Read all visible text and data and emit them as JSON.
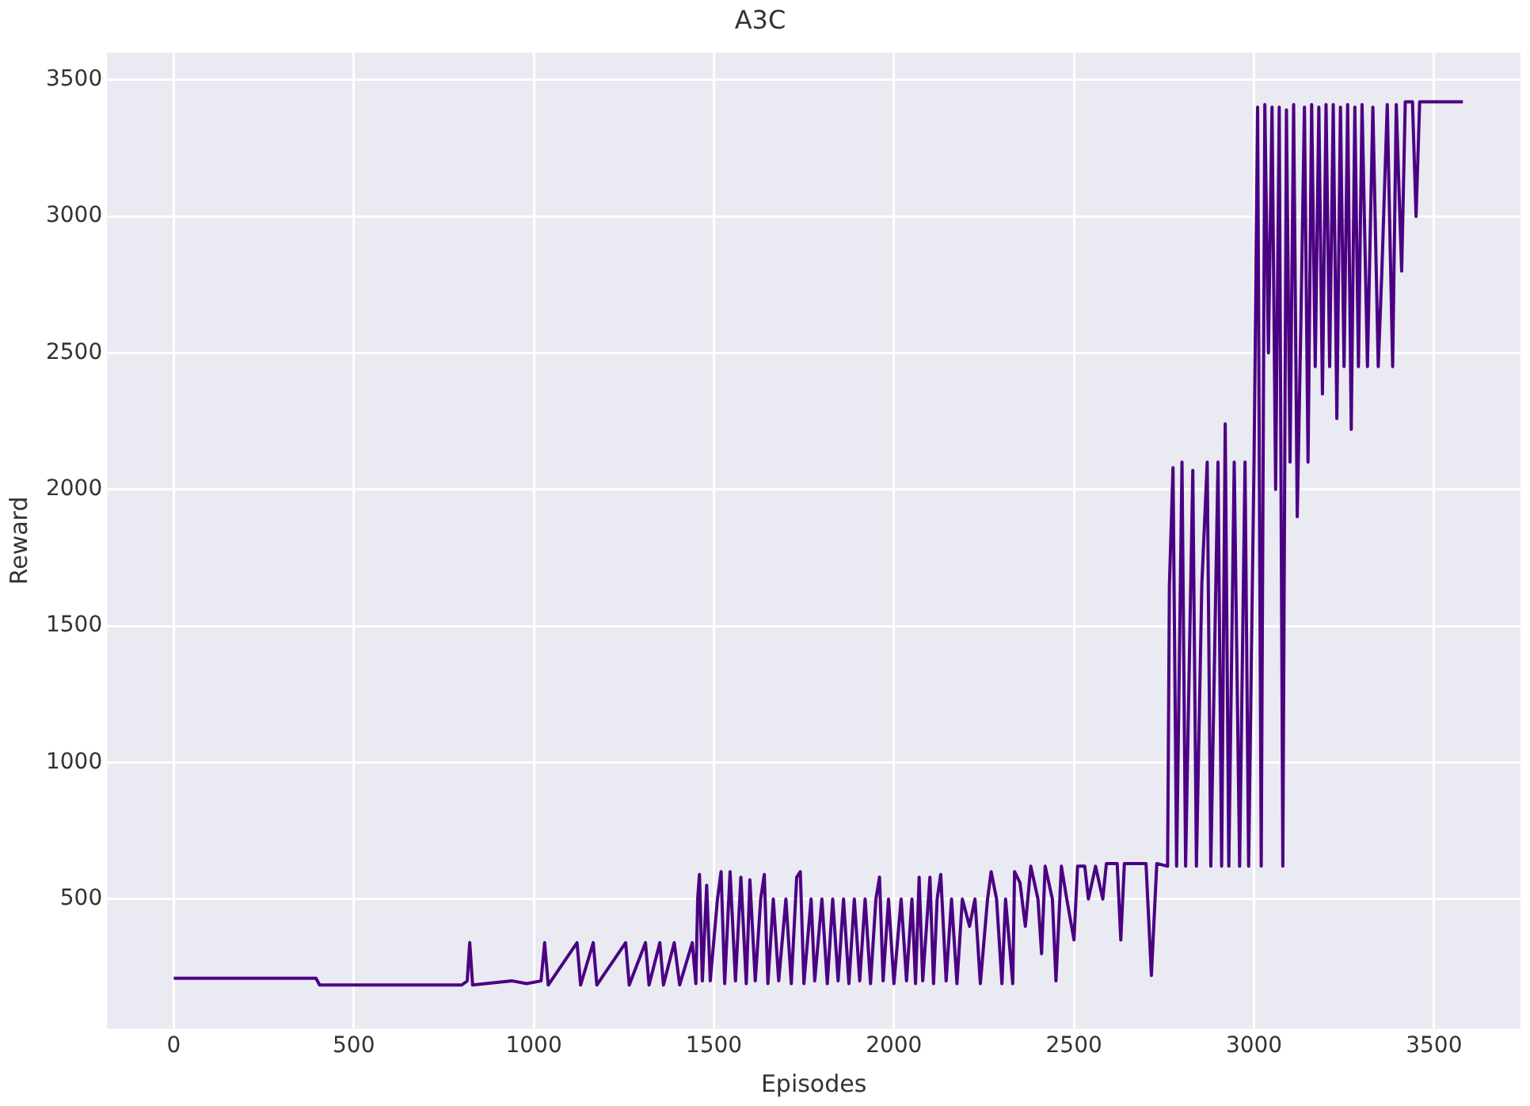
{
  "chart_data": {
    "type": "line",
    "title": "A3C",
    "xlabel": "Episodes",
    "ylabel": "Reward",
    "xlim": [
      -185,
      3740
    ],
    "ylim": [
      25,
      3600
    ],
    "xticks": [
      0,
      500,
      1000,
      1500,
      2000,
      2500,
      3000,
      3500
    ],
    "yticks": [
      500,
      1000,
      1500,
      2000,
      2500,
      3000,
      3500
    ],
    "grid": true,
    "series": [
      {
        "color": "#4b0082",
        "x": [
          0,
          395,
          405,
          800,
          815,
          822,
          830,
          940,
          980,
          1020,
          1030,
          1040,
          1120,
          1130,
          1165,
          1175,
          1255,
          1265,
          1310,
          1320,
          1350,
          1360,
          1390,
          1405,
          1440,
          1450,
          1455,
          1460,
          1468,
          1480,
          1490,
          1510,
          1520,
          1530,
          1545,
          1560,
          1575,
          1590,
          1600,
          1615,
          1630,
          1640,
          1650,
          1665,
          1680,
          1700,
          1715,
          1730,
          1740,
          1750,
          1770,
          1780,
          1800,
          1815,
          1830,
          1845,
          1860,
          1875,
          1890,
          1905,
          1920,
          1935,
          1950,
          1960,
          1970,
          1985,
          2000,
          2020,
          2035,
          2050,
          2060,
          2070,
          2080,
          2100,
          2110,
          2120,
          2130,
          2145,
          2160,
          2175,
          2190,
          2210,
          2225,
          2240,
          2260,
          2270,
          2285,
          2300,
          2310,
          2330,
          2335,
          2350,
          2365,
          2380,
          2400,
          2410,
          2420,
          2440,
          2450,
          2465,
          2480,
          2500,
          2510,
          2530,
          2540,
          2560,
          2580,
          2590,
          2620,
          2630,
          2640,
          2700,
          2715,
          2730,
          2760,
          2765,
          2775,
          2785,
          2800,
          2810,
          2830,
          2840,
          2855,
          2870,
          2880,
          2900,
          2910,
          2920,
          2930,
          2945,
          2960,
          2975,
          2985,
          3000,
          3010,
          3020,
          3030,
          3040,
          3050,
          3060,
          3070,
          3080,
          3090,
          3100,
          3110,
          3120,
          3130,
          3140,
          3150,
          3160,
          3170,
          3180,
          3190,
          3200,
          3210,
          3220,
          3230,
          3240,
          3250,
          3260,
          3270,
          3280,
          3290,
          3300,
          3315,
          3330,
          3345,
          3355,
          3370,
          3385,
          3395,
          3410,
          3420,
          3440,
          3450,
          3460,
          3580
        ],
        "values": [
          210,
          210,
          185,
          185,
          200,
          340,
          185,
          200,
          190,
          200,
          340,
          185,
          340,
          185,
          340,
          185,
          340,
          185,
          340,
          185,
          340,
          185,
          340,
          185,
          340,
          190,
          500,
          590,
          200,
          550,
          200,
          500,
          600,
          190,
          600,
          200,
          580,
          190,
          570,
          200,
          500,
          590,
          190,
          500,
          200,
          500,
          190,
          580,
          600,
          190,
          500,
          200,
          500,
          190,
          500,
          200,
          500,
          190,
          500,
          200,
          500,
          190,
          500,
          580,
          200,
          500,
          190,
          500,
          200,
          500,
          190,
          580,
          200,
          580,
          190,
          500,
          590,
          200,
          500,
          190,
          500,
          400,
          500,
          190,
          500,
          600,
          500,
          190,
          500,
          190,
          600,
          560,
          400,
          620,
          500,
          300,
          620,
          500,
          200,
          620,
          500,
          350,
          620,
          620,
          500,
          620,
          500,
          630,
          630,
          350,
          630,
          630,
          220,
          630,
          620,
          1650,
          2080,
          620,
          2100,
          620,
          2070,
          620,
          1650,
          2100,
          620,
          2100,
          620,
          2240,
          620,
          2100,
          620,
          2100,
          620,
          2100,
          3400,
          620,
          3410,
          2500,
          3400,
          2000,
          3400,
          620,
          3390,
          2100,
          3410,
          1900,
          2600,
          3400,
          2100,
          3410,
          2450,
          3400,
          2350,
          3410,
          2450,
          3410,
          2260,
          3400,
          2450,
          3410,
          2220,
          3400,
          2450,
          3410,
          2450,
          3400,
          2450,
          2800,
          3410,
          2450,
          3410,
          2800,
          3420,
          3420,
          3000,
          3420,
          3420
        ]
      }
    ]
  }
}
